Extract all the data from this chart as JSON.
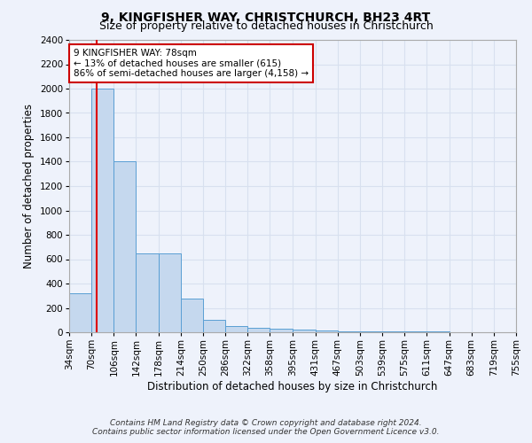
{
  "title": "9, KINGFISHER WAY, CHRISTCHURCH, BH23 4RT",
  "subtitle": "Size of property relative to detached houses in Christchurch",
  "xlabel": "Distribution of detached houses by size in Christchurch",
  "ylabel": "Number of detached properties",
  "footnote1": "Contains HM Land Registry data © Crown copyright and database right 2024.",
  "footnote2": "Contains public sector information licensed under the Open Government Licence v3.0.",
  "annotation_line1": "9 KINGFISHER WAY: 78sqm",
  "annotation_line2": "← 13% of detached houses are smaller (615)",
  "annotation_line3": "86% of semi-detached houses are larger (4,158) →",
  "bar_edges": [
    34,
    70,
    106,
    142,
    178,
    214,
    250,
    286,
    322,
    358,
    395,
    431,
    467,
    503,
    539,
    575,
    611,
    647,
    683,
    719,
    755
  ],
  "bar_heights": [
    320,
    2000,
    1400,
    650,
    650,
    280,
    100,
    50,
    40,
    30,
    20,
    15,
    10,
    8,
    6,
    5,
    4,
    3,
    2,
    1
  ],
  "red_line_x": 78,
  "ylim": [
    0,
    2400
  ],
  "yticks": [
    0,
    200,
    400,
    600,
    800,
    1000,
    1200,
    1400,
    1600,
    1800,
    2000,
    2200,
    2400
  ],
  "bar_color": "#c5d8ee",
  "bar_edge_color": "#5a9fd4",
  "red_line_color": "#dd0000",
  "annotation_box_color": "#ffffff",
  "annotation_box_edge": "#cc0000",
  "background_color": "#eef2fb",
  "grid_color": "#d8e0ef",
  "title_fontsize": 10,
  "subtitle_fontsize": 9,
  "axis_label_fontsize": 8.5,
  "tick_fontsize": 7.5,
  "annotation_fontsize": 7.5,
  "footnote_fontsize": 6.5
}
